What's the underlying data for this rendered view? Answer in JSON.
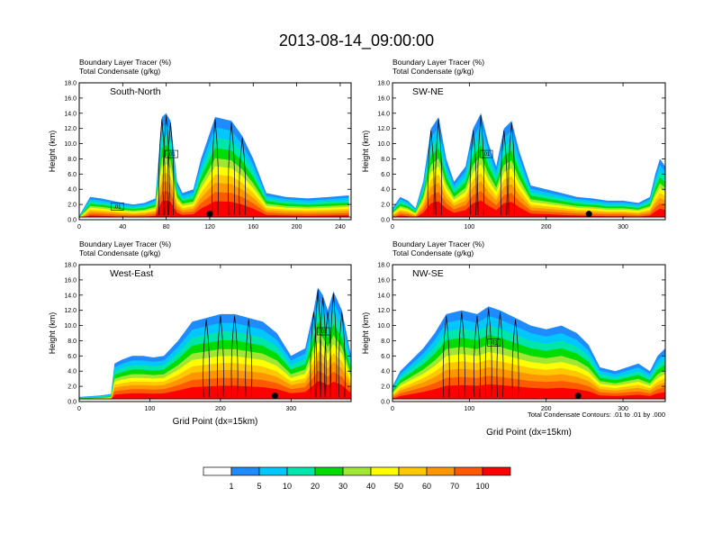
{
  "figure": {
    "title": "2013-08-14_09:00:00",
    "footnote": "Total Condensate Contours: .01 to .01 by .000"
  },
  "colorbar": {
    "labels": [
      "1",
      "5",
      "10",
      "20",
      "30",
      "40",
      "50",
      "60",
      "70",
      "100"
    ],
    "colors": [
      "#ffffff",
      "#1e8cff",
      "#00c8ff",
      "#00e6aa",
      "#00dc00",
      "#a0e632",
      "#ffff00",
      "#ffc800",
      "#ff9600",
      "#ff5a00",
      "#ff0000"
    ]
  },
  "chart_data": [
    {
      "type": "area",
      "panel": "South-North",
      "subtitle_1": "Boundary Layer Tracer   (%)",
      "subtitle_2": "Total Condensate   (g/kg)",
      "ylabel": "Height (km)",
      "xlabel": "",
      "xlim": [
        0,
        250
      ],
      "ylim": [
        0,
        18
      ],
      "xticks": [
        "0",
        "40",
        "80",
        "120",
        "160",
        "200",
        "240"
      ],
      "xtick_values": [
        0,
        40,
        80,
        120,
        160,
        200,
        240
      ],
      "yticks": [
        "0.0",
        "2.0",
        "4.0",
        "6.0",
        "8.0",
        "10.0",
        "12.0",
        "14.0",
        "16.0",
        "18.0"
      ],
      "contour_labels": [
        ".01",
        ".01"
      ],
      "profile": [
        [
          0,
          0.5
        ],
        [
          10,
          3
        ],
        [
          20,
          2.8
        ],
        [
          30,
          2.5
        ],
        [
          40,
          2.2
        ],
        [
          50,
          2
        ],
        [
          60,
          2.2
        ],
        [
          70,
          2.8
        ],
        [
          76,
          13.5
        ],
        [
          80,
          14
        ],
        [
          84,
          13
        ],
        [
          90,
          5
        ],
        [
          95,
          3.5
        ],
        [
          105,
          4
        ],
        [
          112,
          8
        ],
        [
          125,
          13.5
        ],
        [
          140,
          13
        ],
        [
          150,
          11
        ],
        [
          160,
          8
        ],
        [
          172,
          3.5
        ],
        [
          190,
          3
        ],
        [
          210,
          2.8
        ],
        [
          230,
          3
        ],
        [
          248,
          3.2
        ]
      ]
    },
    {
      "type": "area",
      "panel": "SW-NE",
      "subtitle_1": "Boundary Layer Tracer   (%)",
      "subtitle_2": "Total Condensate   (g/kg)",
      "ylabel": "Height (km)",
      "xlabel": "",
      "xlim": [
        0,
        355
      ],
      "ylim": [
        0,
        18
      ],
      "xticks": [
        "0",
        "100",
        "200",
        "300"
      ],
      "xtick_values": [
        0,
        100,
        200,
        300
      ],
      "yticks": [
        "0.0",
        "2.0",
        "4.0",
        "6.0",
        "8.0",
        "10.0",
        "12.0",
        "14.0",
        "16.0",
        "18.0"
      ],
      "contour_labels": [
        ".01"
      ],
      "profile": [
        [
          0,
          1.5
        ],
        [
          10,
          3
        ],
        [
          20,
          2.5
        ],
        [
          30,
          1.5
        ],
        [
          40,
          5
        ],
        [
          50,
          12
        ],
        [
          60,
          13.5
        ],
        [
          70,
          8
        ],
        [
          80,
          5
        ],
        [
          95,
          7
        ],
        [
          105,
          12
        ],
        [
          115,
          14
        ],
        [
          125,
          10
        ],
        [
          135,
          7
        ],
        [
          145,
          12
        ],
        [
          155,
          13
        ],
        [
          165,
          9
        ],
        [
          180,
          4.5
        ],
        [
          200,
          4
        ],
        [
          220,
          3.5
        ],
        [
          240,
          3
        ],
        [
          260,
          2.8
        ],
        [
          280,
          2.5
        ],
        [
          300,
          2.5
        ],
        [
          320,
          2.2
        ],
        [
          335,
          3
        ],
        [
          342,
          6
        ],
        [
          348,
          8
        ],
        [
          355,
          7
        ]
      ]
    },
    {
      "type": "area",
      "panel": "West-East",
      "subtitle_1": "Boundary Layer Tracer   (%)",
      "subtitle_2": "Total Condensate   (g/kg)",
      "ylabel": "Height (km)",
      "xlabel": "Grid Point (dx=15km)",
      "xlim": [
        0,
        385
      ],
      "ylim": [
        0,
        18
      ],
      "xticks": [
        "0",
        "100",
        "200",
        "300"
      ],
      "xtick_values": [
        0,
        100,
        200,
        300
      ],
      "yticks": [
        "0.0",
        "2.0",
        "4.0",
        "6.0",
        "8.0",
        "10.0",
        "12.0",
        "14.0",
        "16.0",
        "18.0"
      ],
      "contour_labels": [
        ".01"
      ],
      "profile": [
        [
          0,
          0.6
        ],
        [
          30,
          0.8
        ],
        [
          45,
          1
        ],
        [
          50,
          5
        ],
        [
          60,
          5.5
        ],
        [
          75,
          6
        ],
        [
          90,
          6
        ],
        [
          105,
          5.8
        ],
        [
          120,
          6
        ],
        [
          140,
          8
        ],
        [
          160,
          10.5
        ],
        [
          180,
          11
        ],
        [
          200,
          11.5
        ],
        [
          220,
          11.5
        ],
        [
          240,
          11
        ],
        [
          260,
          10.5
        ],
        [
          280,
          9
        ],
        [
          300,
          6
        ],
        [
          320,
          7
        ],
        [
          332,
          12
        ],
        [
          338,
          15
        ],
        [
          345,
          14
        ],
        [
          352,
          12
        ],
        [
          360,
          14.5
        ],
        [
          372,
          12
        ],
        [
          385,
          6
        ]
      ]
    },
    {
      "type": "area",
      "panel": "NW-SE",
      "subtitle_1": "Boundary Layer Tracer   (%)",
      "subtitle_2": "Total Condensate   (g/kg)",
      "ylabel": "Height (km)",
      "xlabel": "Grid Point (dx=15km)",
      "xlim": [
        0,
        355
      ],
      "ylim": [
        0,
        18
      ],
      "xticks": [
        "0",
        "100",
        "200",
        "300"
      ],
      "xtick_values": [
        0,
        100,
        200,
        300
      ],
      "yticks": [
        "0.0",
        "2.0",
        "4.0",
        "6.0",
        "8.0",
        "10.0",
        "12.0",
        "14.0",
        "16.0",
        "18.0"
      ],
      "contour_labels": [
        ".01"
      ],
      "profile": [
        [
          0,
          2
        ],
        [
          10,
          4
        ],
        [
          25,
          5.5
        ],
        [
          40,
          7
        ],
        [
          55,
          9
        ],
        [
          70,
          11.5
        ],
        [
          90,
          12
        ],
        [
          110,
          11.5
        ],
        [
          125,
          12.5
        ],
        [
          140,
          12
        ],
        [
          160,
          11
        ],
        [
          180,
          10
        ],
        [
          200,
          9.5
        ],
        [
          220,
          10
        ],
        [
          240,
          9
        ],
        [
          255,
          7.5
        ],
        [
          270,
          4.5
        ],
        [
          290,
          4
        ],
        [
          305,
          4.5
        ],
        [
          320,
          5
        ],
        [
          335,
          4
        ],
        [
          345,
          6
        ],
        [
          355,
          7
        ]
      ]
    }
  ]
}
